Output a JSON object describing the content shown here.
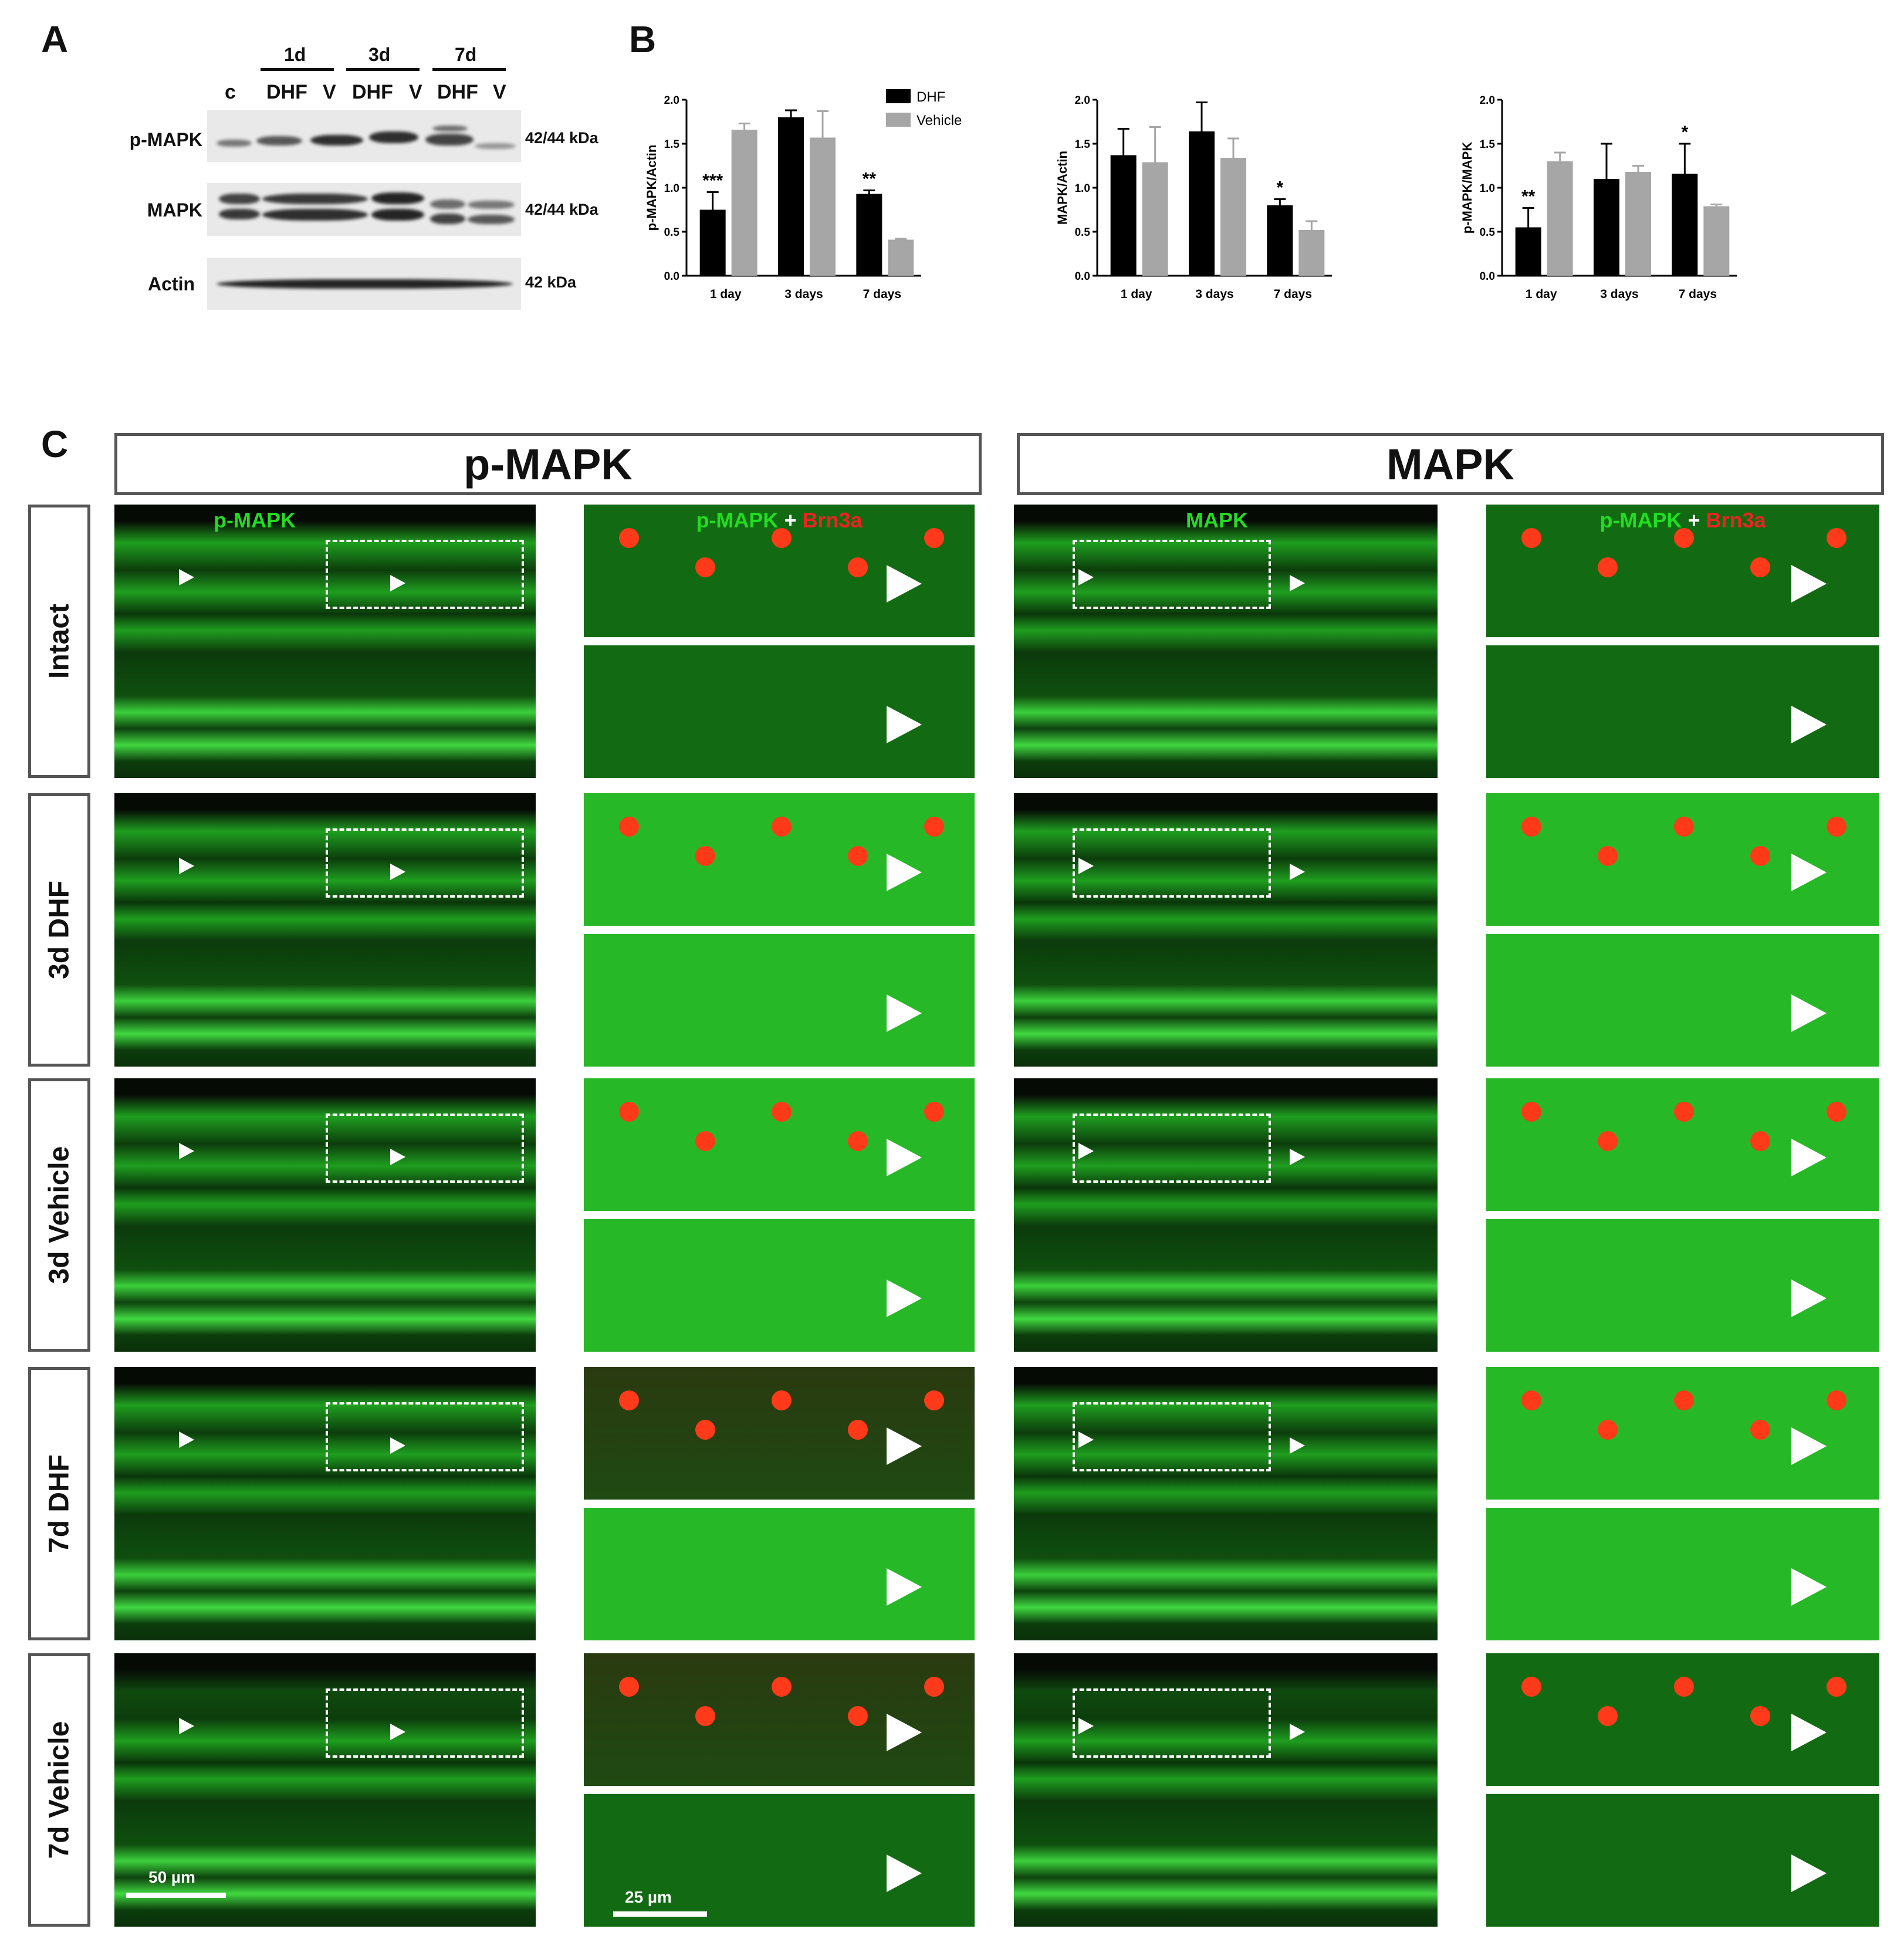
{
  "panels": {
    "a": "A",
    "b": "B",
    "c": "C"
  },
  "blot": {
    "groups": [
      "1d",
      "3d",
      "7d"
    ],
    "lanes": [
      "c",
      "DHF",
      "V",
      "DHF",
      "V",
      "DHF",
      "V"
    ],
    "rows": [
      {
        "label": "p-MAPK",
        "kda": "42/44 kDa"
      },
      {
        "label": "MAPK",
        "kda": "42/44 kDa"
      },
      {
        "label": "Actin",
        "kda": "42 kDa"
      }
    ]
  },
  "chart_data": [
    {
      "type": "bar",
      "ylabel": "p-MAPK/Actin",
      "categories": [
        "1 day",
        "3 days",
        "7 days"
      ],
      "ylim": [
        0,
        2.0
      ],
      "yticks": [
        "0.0",
        "0.5",
        "1.0",
        "1.5",
        "2.0"
      ],
      "series": [
        {
          "name": "DHF",
          "color": "#000000",
          "values": [
            0.75,
            1.8,
            0.93
          ],
          "errors": [
            0.2,
            0.08,
            0.04
          ]
        },
        {
          "name": "Vehicle",
          "color": "#a6a6a6",
          "values": [
            1.66,
            1.57,
            0.41
          ],
          "errors": [
            0.07,
            0.3,
            0.01
          ]
        }
      ],
      "annotations": [
        "***",
        "",
        "**"
      ],
      "legend": "top-right"
    },
    {
      "type": "bar",
      "ylabel": "MAPK/Actin",
      "categories": [
        "1 day",
        "3 days",
        "7 days"
      ],
      "ylim": [
        0,
        2.0
      ],
      "yticks": [
        "0.0",
        "0.5",
        "1.0",
        "1.5",
        "2.0"
      ],
      "series": [
        {
          "color": "#000000",
          "values": [
            1.37,
            1.64,
            0.8
          ],
          "errors": [
            0.3,
            0.33,
            0.07
          ]
        },
        {
          "color": "#a6a6a6",
          "values": [
            1.29,
            1.34,
            0.52
          ],
          "errors": [
            0.4,
            0.22,
            0.1
          ]
        }
      ],
      "annotations": [
        "",
        "",
        "*"
      ]
    },
    {
      "type": "bar",
      "ylabel": "p-MAPK/MAPK",
      "categories": [
        "1 day",
        "3 days",
        "7 days"
      ],
      "ylim": [
        0,
        2.0
      ],
      "yticks": [
        "0.0",
        "0.5",
        "1.0",
        "1.5",
        "2.0"
      ],
      "series": [
        {
          "color": "#000000",
          "values": [
            0.55,
            1.1,
            1.16
          ],
          "errors": [
            0.22,
            0.4,
            0.34
          ]
        },
        {
          "color": "#a6a6a6",
          "values": [
            1.3,
            1.18,
            0.79
          ],
          "errors": [
            0.1,
            0.07,
            0.02
          ]
        }
      ],
      "annotations": [
        "**",
        "",
        "*"
      ]
    }
  ],
  "section_c": {
    "headers": [
      "p-MAPK",
      "MAPK"
    ],
    "rows": [
      "Intact",
      "3d DHF",
      "3d Vehicle",
      "7d DHF",
      "7d Vehicle"
    ],
    "overlay_labels": {
      "pmapk": "p-MAPK",
      "mapk": "MAPK",
      "merge_green": "p-MAPK",
      "plus": "+",
      "merge_red": "Brn3a"
    },
    "colors": {
      "green_label": "#22dd22",
      "red_label": "#ee2222",
      "tissue": "#1f9e1f"
    },
    "scale_bars": {
      "left": "50 µm",
      "zoom": "25 µm"
    }
  }
}
